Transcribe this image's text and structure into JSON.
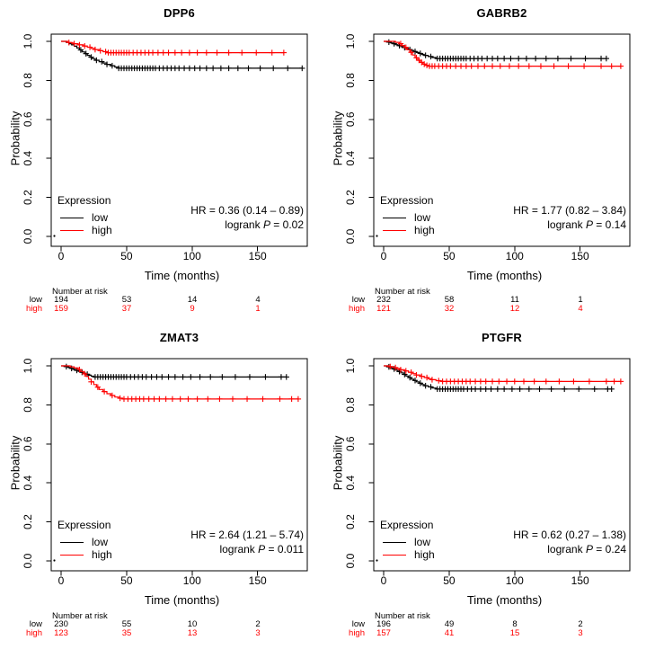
{
  "figure": {
    "background": "#ffffff"
  },
  "axes": {
    "xlabel": "Time (months)",
    "ylabel": "Probability",
    "xticks": [
      "0",
      "50",
      "100",
      "150"
    ],
    "xtick_values": [
      0,
      50,
      100,
      150
    ],
    "yticks": [
      "0.0",
      "0.2",
      "0.4",
      "0.6",
      "0.8",
      "1.0"
    ],
    "ytick_values": [
      0.0,
      0.2,
      0.4,
      0.6,
      0.8,
      1.0
    ],
    "xlim": [
      0,
      188
    ],
    "ylim": [
      0,
      1
    ],
    "grid": false
  },
  "legend": {
    "title": "Expression",
    "position": "bottom-left-inside",
    "entries": [
      {
        "label": "low",
        "color": "#000000"
      },
      {
        "label": "high",
        "color": "#ff0000"
      }
    ]
  },
  "risk_table": {
    "header": "Number at risk",
    "row_labels": [
      "low",
      "high"
    ]
  },
  "stats_labels": {
    "hr_prefix": "HR = ",
    "logrank_prefix": "logrank ",
    "p_symbol": "P"
  },
  "colors": {
    "low": "#000000",
    "high": "#ff0000",
    "axis": "#000000",
    "background": "#ffffff"
  },
  "chart_data": {
    "type": "line",
    "subtype": "kaplan-meier-step",
    "x_unit": "months",
    "y_unit": "survival probability",
    "panels": [
      {
        "title": "DPP6",
        "hr_text": "HR = 0.36 (0.14 – 0.89)",
        "p_text": " = 0.02",
        "risk_low": [
          "194",
          "53",
          "14",
          "4"
        ],
        "risk_high": [
          "159",
          "37",
          "9",
          "1"
        ],
        "series": [
          {
            "name": "low",
            "color": "#000000",
            "end": 184,
            "steps": [
              [
                4,
                0.994
              ],
              [
                6,
                0.988
              ],
              [
                8,
                0.982
              ],
              [
                10,
                0.975
              ],
              [
                12,
                0.966
              ],
              [
                14,
                0.956
              ],
              [
                16,
                0.946
              ],
              [
                18,
                0.937
              ],
              [
                20,
                0.928
              ],
              [
                22,
                0.919
              ],
              [
                24,
                0.911
              ],
              [
                26,
                0.903
              ],
              [
                29,
                0.896
              ],
              [
                32,
                0.889
              ],
              [
                35,
                0.882
              ],
              [
                38,
                0.875
              ],
              [
                41,
                0.868
              ],
              [
                44,
                0.862
              ]
            ],
            "censors": [
              15,
              19,
              23,
              27,
              31,
              35,
              39,
              44,
              46,
              48,
              50,
              52,
              54,
              56,
              58,
              60,
              62,
              64,
              66,
              68,
              70,
              72,
              75,
              78,
              81,
              84,
              87,
              90,
              94,
              98,
              102,
              106,
              111,
              116,
              122,
              128,
              135,
              143,
              152,
              162,
              173,
              184
            ]
          },
          {
            "name": "high",
            "color": "#ff0000",
            "end": 170,
            "steps": [
              [
                5,
                0.994
              ],
              [
                9,
                0.988
              ],
              [
                13,
                0.982
              ],
              [
                17,
                0.976
              ],
              [
                20,
                0.97
              ],
              [
                23,
                0.964
              ],
              [
                26,
                0.958
              ],
              [
                29,
                0.952
              ],
              [
                32,
                0.947
              ],
              [
                35,
                0.942
              ]
            ],
            "censors": [
              6,
              10,
              14,
              18,
              22,
              26,
              30,
              34,
              36,
              38,
              40,
              42,
              44,
              46,
              48,
              50,
              52,
              55,
              58,
              61,
              64,
              67,
              70,
              74,
              78,
              82,
              87,
              92,
              98,
              104,
              111,
              119,
              128,
              138,
              149,
              161,
              170
            ]
          }
        ]
      },
      {
        "title": "GABRB2",
        "hr_text": "HR = 1.77 (0.82 – 3.84)",
        "p_text": " = 0.14",
        "risk_low": [
          "232",
          "58",
          "11",
          "1"
        ],
        "risk_high": [
          "121",
          "32",
          "12",
          "4"
        ],
        "series": [
          {
            "name": "low",
            "color": "#000000",
            "end": 170,
            "steps": [
              [
                3,
                0.996
              ],
              [
                5,
                0.992
              ],
              [
                7,
                0.988
              ],
              [
                9,
                0.983
              ],
              [
                11,
                0.978
              ],
              [
                13,
                0.973
              ],
              [
                15,
                0.968
              ],
              [
                17,
                0.963
              ],
              [
                19,
                0.958
              ],
              [
                21,
                0.953
              ],
              [
                23,
                0.948
              ],
              [
                25,
                0.943
              ],
              [
                27,
                0.938
              ],
              [
                29,
                0.933
              ],
              [
                31,
                0.928
              ],
              [
                34,
                0.922
              ],
              [
                37,
                0.917
              ],
              [
                40,
                0.912
              ]
            ],
            "censors": [
              4,
              8,
              12,
              16,
              20,
              24,
              28,
              32,
              36,
              41,
              43,
              45,
              47,
              49,
              51,
              53,
              55,
              57,
              59,
              61,
              63,
              66,
              69,
              72,
              75,
              79,
              83,
              87,
              92,
              97,
              103,
              109,
              116,
              124,
              133,
              143,
              154,
              166,
              170
            ]
          },
          {
            "name": "high",
            "color": "#ff0000",
            "end": 181,
            "steps": [
              [
                9,
                0.995
              ],
              [
                12,
                0.988
              ],
              [
                14,
                0.979
              ],
              [
                16,
                0.969
              ],
              [
                18,
                0.957
              ],
              [
                20,
                0.944
              ],
              [
                22,
                0.93
              ],
              [
                24,
                0.916
              ],
              [
                26,
                0.903
              ],
              [
                28,
                0.892
              ],
              [
                30,
                0.883
              ],
              [
                32,
                0.877
              ],
              [
                34,
                0.873
              ]
            ],
            "censors": [
              13,
              17,
              21,
              25,
              27,
              29,
              31,
              33,
              35,
              37,
              39,
              42,
              45,
              48,
              51,
              55,
              59,
              63,
              67,
              72,
              77,
              83,
              89,
              96,
              103,
              111,
              120,
              130,
              141,
              153,
              166,
              174,
              181
            ]
          }
        ]
      },
      {
        "title": "ZMAT3",
        "hr_text": "HR = 2.64 (1.21 – 5.74)",
        "p_text": " = 0.011",
        "risk_low": [
          "230",
          "55",
          "10",
          "2"
        ],
        "risk_high": [
          "123",
          "35",
          "13",
          "3"
        ],
        "series": [
          {
            "name": "low",
            "color": "#000000",
            "end": 172,
            "steps": [
              [
                3,
                0.996
              ],
              [
                5,
                0.992
              ],
              [
                7,
                0.987
              ],
              [
                9,
                0.982
              ],
              [
                11,
                0.977
              ],
              [
                13,
                0.972
              ],
              [
                15,
                0.967
              ],
              [
                17,
                0.962
              ],
              [
                19,
                0.957
              ],
              [
                21,
                0.952
              ],
              [
                23,
                0.947
              ],
              [
                25,
                0.943
              ]
            ],
            "censors": [
              4,
              8,
              12,
              16,
              20,
              26,
              28,
              30,
              32,
              34,
              36,
              38,
              40,
              42,
              44,
              46,
              48,
              50,
              53,
              56,
              59,
              62,
              65,
              69,
              73,
              77,
              82,
              87,
              93,
              99,
              106,
              114,
              123,
              133,
              144,
              156,
              168,
              172
            ]
          },
          {
            "name": "high",
            "color": "#ff0000",
            "end": 181,
            "steps": [
              [
                7,
                0.995
              ],
              [
                10,
                0.989
              ],
              [
                13,
                0.981
              ],
              [
                15,
                0.971
              ],
              [
                17,
                0.959
              ],
              [
                19,
                0.946
              ],
              [
                21,
                0.932
              ],
              [
                23,
                0.918
              ],
              [
                25,
                0.904
              ],
              [
                27,
                0.891
              ],
              [
                29,
                0.879
              ],
              [
                32,
                0.868
              ],
              [
                35,
                0.857
              ],
              [
                38,
                0.848
              ],
              [
                41,
                0.84
              ],
              [
                44,
                0.834
              ],
              [
                47,
                0.83
              ]
            ],
            "censors": [
              14,
              18,
              23,
              28,
              33,
              39,
              45,
              48,
              51,
              54,
              57,
              60,
              63,
              67,
              71,
              75,
              80,
              85,
              91,
              97,
              104,
              112,
              121,
              131,
              142,
              154,
              167,
              176,
              181
            ]
          }
        ]
      },
      {
        "title": "PTGFR",
        "hr_text": "HR = 0.62 (0.27 – 1.38)",
        "p_text": " = 0.24",
        "risk_low": [
          "196",
          "49",
          "8",
          "2"
        ],
        "risk_high": [
          "157",
          "41",
          "15",
          "3"
        ],
        "series": [
          {
            "name": "low",
            "color": "#000000",
            "end": 174,
            "steps": [
              [
                3,
                0.995
              ],
              [
                5,
                0.99
              ],
              [
                7,
                0.984
              ],
              [
                9,
                0.978
              ],
              [
                11,
                0.971
              ],
              [
                13,
                0.964
              ],
              [
                15,
                0.956
              ],
              [
                17,
                0.948
              ],
              [
                19,
                0.94
              ],
              [
                21,
                0.932
              ],
              [
                23,
                0.925
              ],
              [
                25,
                0.918
              ],
              [
                27,
                0.911
              ],
              [
                29,
                0.904
              ],
              [
                31,
                0.898
              ],
              [
                34,
                0.892
              ],
              [
                37,
                0.886
              ],
              [
                40,
                0.881
              ]
            ],
            "censors": [
              4,
              8,
              12,
              16,
              20,
              24,
              28,
              32,
              36,
              41,
              43,
              45,
              47,
              49,
              51,
              53,
              55,
              57,
              59,
              61,
              64,
              67,
              70,
              74,
              78,
              82,
              87,
              92,
              98,
              104,
              111,
              119,
              128,
              138,
              149,
              161,
              171,
              174
            ]
          },
          {
            "name": "high",
            "color": "#ff0000",
            "end": 181,
            "steps": [
              [
                4,
                0.996
              ],
              [
                7,
                0.991
              ],
              [
                10,
                0.986
              ],
              [
                13,
                0.98
              ],
              [
                16,
                0.974
              ],
              [
                19,
                0.967
              ],
              [
                22,
                0.96
              ],
              [
                25,
                0.953
              ],
              [
                28,
                0.946
              ],
              [
                31,
                0.94
              ],
              [
                34,
                0.934
              ],
              [
                37,
                0.929
              ],
              [
                40,
                0.924
              ],
              [
                44,
                0.92
              ]
            ],
            "censors": [
              5,
              9,
              13,
              17,
              21,
              25,
              29,
              33,
              37,
              42,
              45,
              48,
              51,
              54,
              57,
              60,
              63,
              66,
              70,
              74,
              78,
              83,
              88,
              94,
              100,
              107,
              115,
              124,
              134,
              145,
              157,
              170,
              176,
              181
            ]
          }
        ]
      }
    ]
  }
}
